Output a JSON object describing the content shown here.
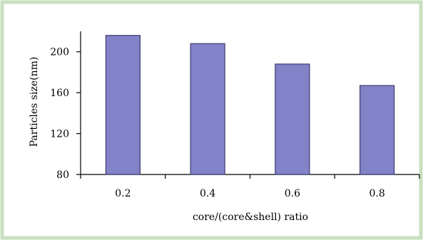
{
  "colors": {
    "frame_border": "#c9dfbe",
    "bar_fill": "#8282c8",
    "bar_stroke": "#3c3c6e",
    "axis": "#000000"
  },
  "chart_data": {
    "type": "bar",
    "categories": [
      "0.2",
      "0.4",
      "0.6",
      "0.8"
    ],
    "series": [
      {
        "values": [
          216,
          208,
          188,
          167
        ]
      }
    ],
    "xlabel": "core/(core&shell) ratio",
    "ylabel": "Particles size(nm)",
    "ylim": [
      80,
      220
    ],
    "yticks": [
      80,
      120,
      160,
      200
    ],
    "grid": false,
    "legend": "none"
  }
}
